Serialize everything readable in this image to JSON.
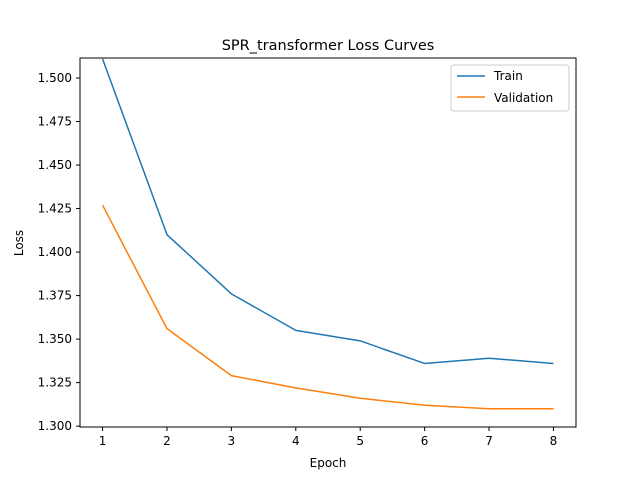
{
  "chart_data": {
    "type": "line",
    "title": "SPR_transformer Loss Curves",
    "xlabel": "Epoch",
    "ylabel": "Loss",
    "x": [
      1,
      2,
      3,
      4,
      5,
      6,
      7,
      8
    ],
    "xticks": [
      "1",
      "2",
      "3",
      "4",
      "5",
      "6",
      "7",
      "8"
    ],
    "yticks": [
      "1.300",
      "1.325",
      "1.350",
      "1.375",
      "1.400",
      "1.425",
      "1.450",
      "1.475",
      "1.500"
    ],
    "ylim": [
      1.2995,
      1.5115
    ],
    "grid": false,
    "legend_position": "top-right",
    "series": [
      {
        "name": "Train",
        "color": "#1f77b4",
        "values": [
          1.511,
          1.41,
          1.376,
          1.355,
          1.349,
          1.336,
          1.339,
          1.336
        ]
      },
      {
        "name": "Validation",
        "color": "#ff7f0e",
        "values": [
          1.427,
          1.356,
          1.329,
          1.322,
          1.316,
          1.312,
          1.31,
          1.31
        ]
      }
    ]
  }
}
